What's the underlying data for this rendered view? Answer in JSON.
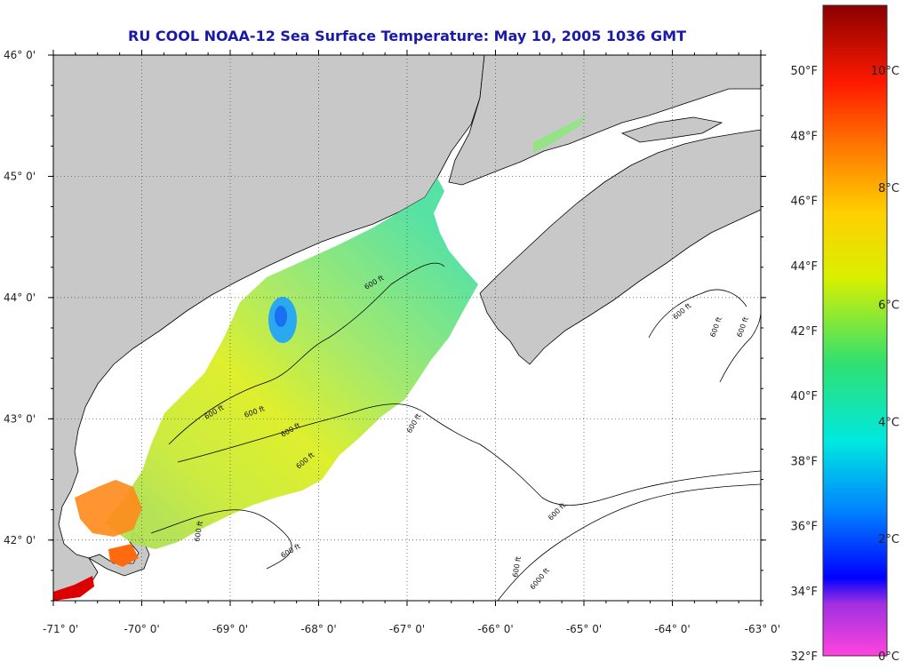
{
  "title": "RU COOL  NOAA-12  Sea Surface Temperature:  May 10, 2005 1036 GMT",
  "map": {
    "lon_range": [
      -71.0,
      -63.0
    ],
    "lat_range": [
      41.5,
      46.0
    ],
    "lon_ticks": [
      {
        "value": -71,
        "label": "-71° 0'"
      },
      {
        "value": -70,
        "label": "-70° 0'"
      },
      {
        "value": -69,
        "label": "-69° 0'"
      },
      {
        "value": -68,
        "label": "-68° 0'"
      },
      {
        "value": -67,
        "label": "-67° 0'"
      },
      {
        "value": -66,
        "label": "-66° 0'"
      },
      {
        "value": -65,
        "label": "-65° 0'"
      },
      {
        "value": -64,
        "label": "-64° 0'"
      },
      {
        "value": -63,
        "label": "-63° 0'"
      }
    ],
    "lat_ticks": [
      {
        "value": 46,
        "label": "46° 0'"
      },
      {
        "value": 45,
        "label": "45° 0'"
      },
      {
        "value": 44,
        "label": "44° 0'"
      },
      {
        "value": 43,
        "label": "43° 0'"
      },
      {
        "value": 42,
        "label": "42° 0'"
      }
    ],
    "contour_label": "600 ft",
    "contour_label_alt": "6000 ft",
    "colors": {
      "land": "#c8c8c8",
      "ocean_no_data": "#ffffff",
      "title": "#1a1aa8"
    }
  },
  "colorbar": {
    "temp_range_f": [
      32,
      52
    ],
    "fahrenheit_labels": [
      "32°F",
      "34°F",
      "36°F",
      "38°F",
      "40°F",
      "42°F",
      "44°F",
      "46°F",
      "48°F",
      "50°F"
    ],
    "celsius_labels": [
      "0°C",
      "2°C",
      "4°C",
      "6°C",
      "8°C",
      "10°C"
    ]
  }
}
